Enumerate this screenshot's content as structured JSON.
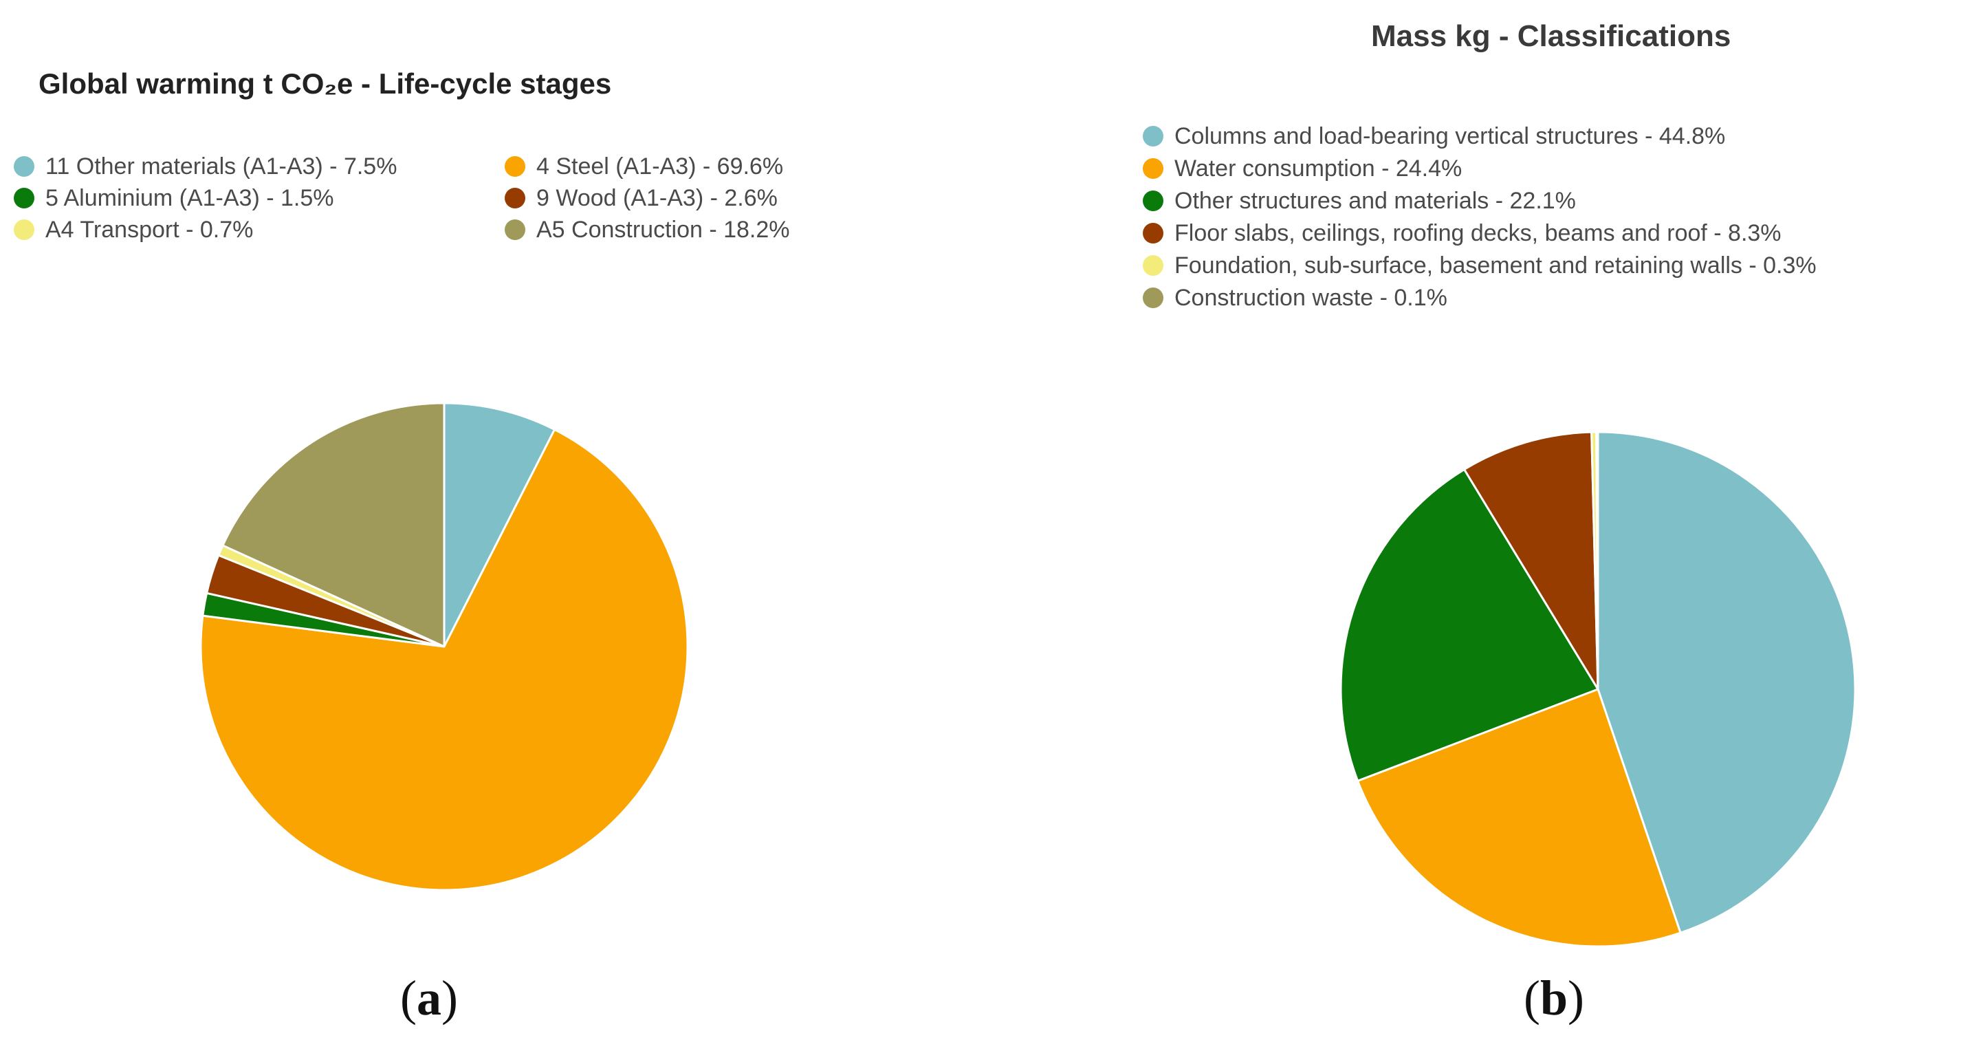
{
  "chart_data": [
    {
      "type": "pie",
      "title": "Global warming t CO₂e - Life-cycle stages",
      "caption_letter": "a",
      "legend_placement": "top",
      "slices": [
        {
          "label": "11 Other materials (A1-A3) - 7.5%",
          "value": 7.5,
          "color": "#7fc0c8"
        },
        {
          "label": "4 Steel (A1-A3) - 69.6%",
          "value": 69.6,
          "color": "#f9a400"
        },
        {
          "label": "5 Aluminium (A1-A3) - 1.5%",
          "value": 1.5,
          "color": "#0a7a0a"
        },
        {
          "label": "9 Wood (A1-A3) - 2.6%",
          "value": 2.6,
          "color": "#963c00"
        },
        {
          "label": "A4 Transport - 0.7%",
          "value": 0.7,
          "color": "#f3ec7a"
        },
        {
          "label": "A5 Construction - 18.2%",
          "value": 18.2,
          "color": "#a09a5a"
        }
      ]
    },
    {
      "type": "pie",
      "title": "Mass kg - Classifications",
      "caption_letter": "b",
      "legend_placement": "top",
      "slices": [
        {
          "label": "Columns and load-bearing vertical structures - 44.8%",
          "value": 44.8,
          "color": "#7fc0c8"
        },
        {
          "label": "Water consumption - 24.4%",
          "value": 24.4,
          "color": "#f9a400"
        },
        {
          "label": "Other structures and materials - 22.1%",
          "value": 22.1,
          "color": "#0a7a0a"
        },
        {
          "label": "Floor slabs, ceilings, roofing decks, beams and roof - 8.3%",
          "value": 8.3,
          "color": "#963c00"
        },
        {
          "label": "Foundation, sub-surface, basement and retaining walls - 0.3%",
          "value": 0.3,
          "color": "#f3ec7a"
        },
        {
          "label": "Construction waste - 0.1%",
          "value": 0.1,
          "color": "#a09a5a"
        }
      ]
    }
  ]
}
